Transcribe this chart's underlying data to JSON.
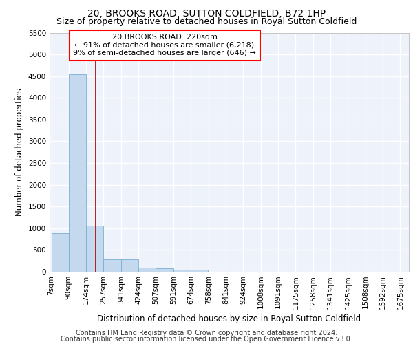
{
  "title": "20, BROOKS ROAD, SUTTON COLDFIELD, B72 1HP",
  "subtitle": "Size of property relative to detached houses in Royal Sutton Coldfield",
  "xlabel": "Distribution of detached houses by size in Royal Sutton Coldfield",
  "ylabel": "Number of detached properties",
  "footer1": "Contains HM Land Registry data © Crown copyright and database right 2024.",
  "footer2": "Contains public sector information licensed under the Open Government Licence v3.0.",
  "annotation_line1": "20 BROOKS ROAD: 220sqm",
  "annotation_line2": "← 91% of detached houses are smaller (6,218)",
  "annotation_line3": "9% of semi-detached houses are larger (646) →",
  "property_size": 220,
  "bin_labels": [
    "7sqm",
    "90sqm",
    "174sqm",
    "257sqm",
    "341sqm",
    "424sqm",
    "507sqm",
    "591sqm",
    "674sqm",
    "758sqm",
    "841sqm",
    "924sqm",
    "1008sqm",
    "1091sqm",
    "1175sqm",
    "1258sqm",
    "1341sqm",
    "1425sqm",
    "1508sqm",
    "1592sqm",
    "1675sqm"
  ],
  "bin_edges": [
    7,
    90,
    174,
    257,
    341,
    424,
    507,
    591,
    674,
    758,
    841,
    924,
    1008,
    1091,
    1175,
    1258,
    1341,
    1425,
    1508,
    1592,
    1675
  ],
  "bar_heights": [
    880,
    4550,
    1060,
    280,
    280,
    90,
    80,
    55,
    50,
    0,
    0,
    0,
    0,
    0,
    0,
    0,
    0,
    0,
    0,
    0
  ],
  "bar_color": "#c5d9ee",
  "bar_edge_color": "#7aafd4",
  "vline_x": 220,
  "vline_color": "#aa0000",
  "ylim": [
    0,
    5500
  ],
  "yticks": [
    0,
    500,
    1000,
    1500,
    2000,
    2500,
    3000,
    3500,
    4000,
    4500,
    5000,
    5500
  ],
  "bg_color": "#ffffff",
  "plot_bg_color": "#eef2fb",
  "grid_color": "#ffffff",
  "title_fontsize": 10,
  "subtitle_fontsize": 9,
  "axis_label_fontsize": 8.5,
  "tick_fontsize": 7.5,
  "footer_fontsize": 7,
  "annotation_fontsize": 8
}
